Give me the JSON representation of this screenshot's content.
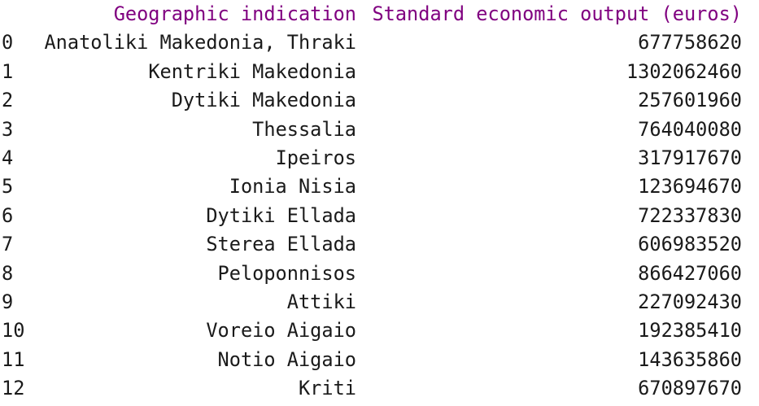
{
  "header": {
    "index_label": "",
    "col_geo": "Geographic indication",
    "col_output": "Standard economic output (euros)"
  },
  "colors": {
    "header_text": "#800080",
    "body_text": "#1a1a1a",
    "background": "#ffffff"
  },
  "rows": [
    {
      "index": "0",
      "geo": "Anatoliki Makedonia, Thraki",
      "output": "677758620"
    },
    {
      "index": "1",
      "geo": "Kentriki Makedonia",
      "output": "1302062460"
    },
    {
      "index": "2",
      "geo": "Dytiki Makedonia",
      "output": "257601960"
    },
    {
      "index": "3",
      "geo": "Thessalia",
      "output": "764040080"
    },
    {
      "index": "4",
      "geo": "Ipeiros",
      "output": "317917670"
    },
    {
      "index": "5",
      "geo": "Ionia Nisia",
      "output": "123694670"
    },
    {
      "index": "6",
      "geo": "Dytiki Ellada",
      "output": "722337830"
    },
    {
      "index": "7",
      "geo": "Sterea Ellada",
      "output": "606983520"
    },
    {
      "index": "8",
      "geo": "Peloponnisos",
      "output": "866427060"
    },
    {
      "index": "9",
      "geo": "Attiki",
      "output": "227092430"
    },
    {
      "index": "10",
      "geo": "Voreio Aigaio",
      "output": "192385410"
    },
    {
      "index": "11",
      "geo": "Notio Aigaio",
      "output": "143635860"
    },
    {
      "index": "12",
      "geo": "Kriti",
      "output": "670897670"
    }
  ]
}
